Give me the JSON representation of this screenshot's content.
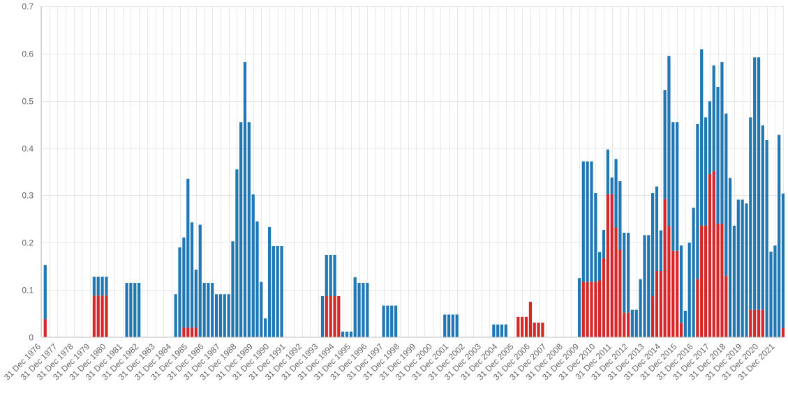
{
  "chart_data": {
    "type": "bar",
    "stacked": true,
    "title": "",
    "xlabel": "",
    "ylabel": "",
    "ylim": [
      0,
      0.7
    ],
    "yticks": [
      "0",
      "0.1",
      "0.2",
      "0.3",
      "0.4",
      "0.5",
      "0.6",
      "0.7"
    ],
    "grid": true,
    "legend": "none",
    "x_tick_labels": [
      "31 Dec 1976",
      "31 Dec 1977",
      "31 Dec 1978",
      "31 Dec 1979",
      "31 Dec 1980",
      "31 Dec 1981",
      "31 Dec 1982",
      "31 Dec 1983",
      "31 Dec 1984",
      "31 Dec 1985",
      "31 Dec 1986",
      "31 Dec 1987",
      "31 Dec 1988",
      "31 Dec 1989",
      "31 Dec 1990",
      "31 Dec 1991",
      "31 Dec 1992",
      "31 Dec 1993",
      "31 Dec 1994",
      "31 Dec 1995",
      "31 Dec 1996",
      "31 Dec 1997",
      "31 Dec 1998",
      "31 Dec 1999",
      "31 Dec 2000",
      "31 Dec 2001",
      "31 Dec 2002",
      "31 Dec 2003",
      "31 Dec 2004",
      "31 Dec 2005",
      "31 Dec 2006",
      "31 Dec 2007",
      "31 Dec 2008",
      "31 Dec 2009",
      "31 Dec 2010",
      "31 Dec 2011",
      "31 Dec 2012",
      "31 Dec 2013",
      "31 Dec 2014",
      "31 Dec 2015",
      "31 Dec 2016",
      "31 Dec 2017",
      "31 Dec 2018",
      "31 Dec 2019",
      "31 Dec 2020",
      "31 Dec 2021"
    ],
    "x_range": [
      "1976-12-31",
      "2022-06-30"
    ],
    "colors": {
      "blue": "#1f77b4",
      "red": "#d62728"
    },
    "bars": [
      {
        "date": "1977-03-31",
        "total": 0.153,
        "red": 0.038
      },
      {
        "date": "1980-03-31",
        "total": 0.128,
        "red": 0.088
      },
      {
        "date": "1980-06-30",
        "total": 0.128,
        "red": 0.088
      },
      {
        "date": "1980-09-30",
        "total": 0.128,
        "red": 0.088
      },
      {
        "date": "1980-12-31",
        "total": 0.128,
        "red": 0.088
      },
      {
        "date": "1982-03-31",
        "total": 0.115,
        "red": 0
      },
      {
        "date": "1982-06-30",
        "total": 0.115,
        "red": 0
      },
      {
        "date": "1982-09-30",
        "total": 0.115,
        "red": 0
      },
      {
        "date": "1982-12-31",
        "total": 0.115,
        "red": 0
      },
      {
        "date": "1985-03-31",
        "total": 0.091,
        "red": 0
      },
      {
        "date": "1985-06-30",
        "total": 0.19,
        "red": 0
      },
      {
        "date": "1985-09-30",
        "total": 0.211,
        "red": 0.02
      },
      {
        "date": "1985-12-31",
        "total": 0.335,
        "red": 0.02
      },
      {
        "date": "1986-03-31",
        "total": 0.243,
        "red": 0.02
      },
      {
        "date": "1986-06-30",
        "total": 0.143,
        "red": 0.02
      },
      {
        "date": "1986-09-30",
        "total": 0.238,
        "red": 0
      },
      {
        "date": "1986-12-31",
        "total": 0.115,
        "red": 0
      },
      {
        "date": "1987-03-31",
        "total": 0.115,
        "red": 0
      },
      {
        "date": "1987-06-30",
        "total": 0.115,
        "red": 0
      },
      {
        "date": "1987-09-30",
        "total": 0.091,
        "red": 0
      },
      {
        "date": "1987-12-31",
        "total": 0.091,
        "red": 0
      },
      {
        "date": "1988-03-31",
        "total": 0.091,
        "red": 0
      },
      {
        "date": "1988-06-30",
        "total": 0.091,
        "red": 0
      },
      {
        "date": "1988-09-30",
        "total": 0.203,
        "red": 0
      },
      {
        "date": "1988-12-31",
        "total": 0.355,
        "red": 0
      },
      {
        "date": "1989-03-31",
        "total": 0.455,
        "red": 0
      },
      {
        "date": "1989-06-30",
        "total": 0.582,
        "red": 0
      },
      {
        "date": "1989-09-30",
        "total": 0.455,
        "red": 0
      },
      {
        "date": "1989-12-31",
        "total": 0.302,
        "red": 0
      },
      {
        "date": "1990-03-31",
        "total": 0.245,
        "red": 0
      },
      {
        "date": "1990-06-30",
        "total": 0.117,
        "red": 0
      },
      {
        "date": "1990-09-30",
        "total": 0.04,
        "red": 0
      },
      {
        "date": "1990-12-31",
        "total": 0.233,
        "red": 0
      },
      {
        "date": "1991-03-31",
        "total": 0.193,
        "red": 0
      },
      {
        "date": "1991-06-30",
        "total": 0.193,
        "red": 0
      },
      {
        "date": "1991-09-30",
        "total": 0.193,
        "red": 0
      },
      {
        "date": "1994-03-31",
        "total": 0.087,
        "red": 0
      },
      {
        "date": "1994-06-30",
        "total": 0.174,
        "red": 0.087
      },
      {
        "date": "1994-09-30",
        "total": 0.174,
        "red": 0.087
      },
      {
        "date": "1994-12-31",
        "total": 0.174,
        "red": 0.087
      },
      {
        "date": "1995-03-31",
        "total": 0.087,
        "red": 0.087
      },
      {
        "date": "1995-06-30",
        "total": 0.012,
        "red": 0
      },
      {
        "date": "1995-09-30",
        "total": 0.012,
        "red": 0
      },
      {
        "date": "1995-12-31",
        "total": 0.012,
        "red": 0
      },
      {
        "date": "1996-03-31",
        "total": 0.127,
        "red": 0
      },
      {
        "date": "1996-06-30",
        "total": 0.115,
        "red": 0
      },
      {
        "date": "1996-09-30",
        "total": 0.115,
        "red": 0
      },
      {
        "date": "1996-12-31",
        "total": 0.115,
        "red": 0
      },
      {
        "date": "1997-12-31",
        "total": 0.067,
        "red": 0
      },
      {
        "date": "1998-03-31",
        "total": 0.067,
        "red": 0
      },
      {
        "date": "1998-06-30",
        "total": 0.067,
        "red": 0
      },
      {
        "date": "1998-09-30",
        "total": 0.067,
        "red": 0
      },
      {
        "date": "2001-09-30",
        "total": 0.048,
        "red": 0
      },
      {
        "date": "2001-12-31",
        "total": 0.048,
        "red": 0
      },
      {
        "date": "2002-03-31",
        "total": 0.048,
        "red": 0
      },
      {
        "date": "2002-06-30",
        "total": 0.048,
        "red": 0
      },
      {
        "date": "2004-09-30",
        "total": 0.027,
        "red": 0
      },
      {
        "date": "2004-12-31",
        "total": 0.027,
        "red": 0
      },
      {
        "date": "2005-03-31",
        "total": 0.027,
        "red": 0
      },
      {
        "date": "2005-06-30",
        "total": 0.027,
        "red": 0
      },
      {
        "date": "2006-03-31",
        "total": 0.043,
        "red": 0.043
      },
      {
        "date": "2006-06-30",
        "total": 0.043,
        "red": 0.043
      },
      {
        "date": "2006-09-30",
        "total": 0.043,
        "red": 0.043
      },
      {
        "date": "2006-12-31",
        "total": 0.075,
        "red": 0.075
      },
      {
        "date": "2007-03-31",
        "total": 0.031,
        "red": 0.031
      },
      {
        "date": "2007-06-30",
        "total": 0.031,
        "red": 0.031
      },
      {
        "date": "2007-09-30",
        "total": 0.031,
        "red": 0.031
      },
      {
        "date": "2009-12-31",
        "total": 0.125,
        "red": 0
      },
      {
        "date": "2010-03-31",
        "total": 0.372,
        "red": 0.117
      },
      {
        "date": "2010-06-30",
        "total": 0.372,
        "red": 0.117
      },
      {
        "date": "2010-09-30",
        "total": 0.372,
        "red": 0.117
      },
      {
        "date": "2010-12-31",
        "total": 0.305,
        "red": 0.117
      },
      {
        "date": "2011-03-31",
        "total": 0.18,
        "red": 0.12
      },
      {
        "date": "2011-06-30",
        "total": 0.227,
        "red": 0.167
      },
      {
        "date": "2011-09-30",
        "total": 0.397,
        "red": 0.302
      },
      {
        "date": "2011-12-31",
        "total": 0.338,
        "red": 0.302
      },
      {
        "date": "2012-03-31",
        "total": 0.377,
        "red": 0.232
      },
      {
        "date": "2012-06-30",
        "total": 0.33,
        "red": 0.185
      },
      {
        "date": "2012-09-30",
        "total": 0.221,
        "red": 0.052
      },
      {
        "date": "2012-12-31",
        "total": 0.221,
        "red": 0.052
      },
      {
        "date": "2013-03-31",
        "total": 0.058,
        "red": 0
      },
      {
        "date": "2013-06-30",
        "total": 0.058,
        "red": 0
      },
      {
        "date": "2013-09-30",
        "total": 0.123,
        "red": 0
      },
      {
        "date": "2013-12-31",
        "total": 0.216,
        "red": 0
      },
      {
        "date": "2014-03-31",
        "total": 0.216,
        "red": 0
      },
      {
        "date": "2014-06-30",
        "total": 0.305,
        "red": 0.087
      },
      {
        "date": "2014-09-30",
        "total": 0.319,
        "red": 0.14
      },
      {
        "date": "2014-12-31",
        "total": 0.226,
        "red": 0.14
      },
      {
        "date": "2015-03-31",
        "total": 0.523,
        "red": 0.292
      },
      {
        "date": "2015-06-30",
        "total": 0.595,
        "red": 0.235
      },
      {
        "date": "2015-09-30",
        "total": 0.455,
        "red": 0.183
      },
      {
        "date": "2015-12-31",
        "total": 0.455,
        "red": 0.183
      },
      {
        "date": "2016-03-31",
        "total": 0.194,
        "red": 0.03
      },
      {
        "date": "2016-06-30",
        "total": 0.056,
        "red": 0
      },
      {
        "date": "2016-09-30",
        "total": 0.2,
        "red": 0
      },
      {
        "date": "2016-12-31",
        "total": 0.274,
        "red": 0
      },
      {
        "date": "2017-03-31",
        "total": 0.451,
        "red": 0.123
      },
      {
        "date": "2017-06-30",
        "total": 0.609,
        "red": 0.236
      },
      {
        "date": "2017-09-30",
        "total": 0.465,
        "red": 0.236
      },
      {
        "date": "2017-12-31",
        "total": 0.499,
        "red": 0.345
      },
      {
        "date": "2018-03-31",
        "total": 0.575,
        "red": 0.352
      },
      {
        "date": "2018-06-30",
        "total": 0.529,
        "red": 0.24
      },
      {
        "date": "2018-09-30",
        "total": 0.582,
        "red": 0.24
      },
      {
        "date": "2018-12-31",
        "total": 0.473,
        "red": 0.13
      },
      {
        "date": "2019-03-31",
        "total": 0.337,
        "red": 0
      },
      {
        "date": "2019-06-30",
        "total": 0.236,
        "red": 0
      },
      {
        "date": "2019-09-30",
        "total": 0.291,
        "red": 0
      },
      {
        "date": "2019-12-31",
        "total": 0.291,
        "red": 0
      },
      {
        "date": "2020-03-31",
        "total": 0.283,
        "red": 0
      },
      {
        "date": "2020-06-30",
        "total": 0.465,
        "red": 0.058
      },
      {
        "date": "2020-09-30",
        "total": 0.592,
        "red": 0.058
      },
      {
        "date": "2020-12-31",
        "total": 0.592,
        "red": 0.058
      },
      {
        "date": "2021-03-31",
        "total": 0.448,
        "red": 0.058
      },
      {
        "date": "2021-06-30",
        "total": 0.417,
        "red": 0
      },
      {
        "date": "2021-09-30",
        "total": 0.181,
        "red": 0
      },
      {
        "date": "2021-12-31",
        "total": 0.194,
        "red": 0
      },
      {
        "date": "2022-03-31",
        "total": 0.428,
        "red": 0
      },
      {
        "date": "2022-06-30",
        "total": 0.304,
        "red": 0.02
      }
    ]
  }
}
